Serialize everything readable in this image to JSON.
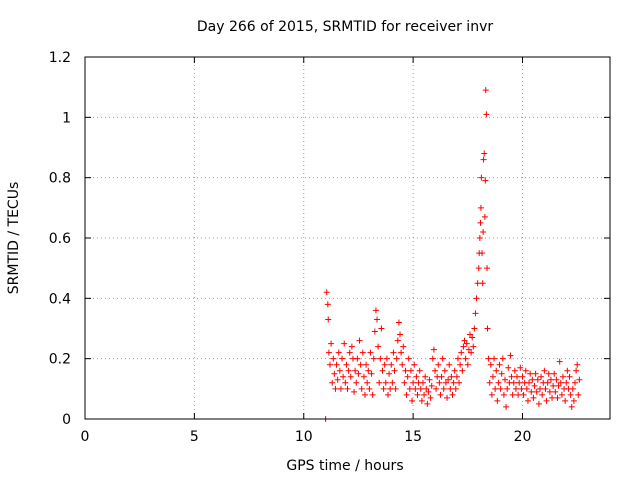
{
  "chart_data": {
    "type": "scatter",
    "title": "Day 266 of 2015, SRMTID for receiver invr",
    "xlabel": "GPS time / hours",
    "ylabel": "SRMTID / TECUs",
    "xlim": [
      0,
      24
    ],
    "ylim": [
      0,
      1.2
    ],
    "xticks": [
      0,
      5,
      10,
      15,
      20
    ],
    "xtick_labels": [
      "0",
      "5",
      "10",
      "15",
      "20"
    ],
    "yticks": [
      0,
      0.2,
      0.4,
      0.6,
      0.8,
      1.0,
      1.2
    ],
    "ytick_labels": [
      "0",
      "0.2",
      "0.4",
      "0.6",
      "0.8",
      "1",
      "1.2"
    ],
    "grid": true,
    "marker": "+",
    "color": "#ff0000",
    "series": [
      {
        "name": "SRMTID",
        "points": [
          [
            11.0,
            0.0
          ],
          [
            11.05,
            0.42
          ],
          [
            11.1,
            0.38
          ],
          [
            11.12,
            0.33
          ],
          [
            11.15,
            0.22
          ],
          [
            11.2,
            0.18
          ],
          [
            11.25,
            0.25
          ],
          [
            11.3,
            0.12
          ],
          [
            11.35,
            0.2
          ],
          [
            11.4,
            0.15
          ],
          [
            11.45,
            0.1
          ],
          [
            11.5,
            0.18
          ],
          [
            11.55,
            0.13
          ],
          [
            11.6,
            0.22
          ],
          [
            11.65,
            0.16
          ],
          [
            11.7,
            0.1
          ],
          [
            11.75,
            0.2
          ],
          [
            11.8,
            0.14
          ],
          [
            11.85,
            0.25
          ],
          [
            11.9,
            0.12
          ],
          [
            11.95,
            0.18
          ],
          [
            12.0,
            0.1
          ],
          [
            12.05,
            0.16
          ],
          [
            12.1,
            0.22
          ],
          [
            12.15,
            0.14
          ],
          [
            12.2,
            0.24
          ],
          [
            12.25,
            0.2
          ],
          [
            12.3,
            0.09
          ],
          [
            12.35,
            0.16
          ],
          [
            12.4,
            0.12
          ],
          [
            12.45,
            0.2
          ],
          [
            12.5,
            0.15
          ],
          [
            12.55,
            0.26
          ],
          [
            12.6,
            0.18
          ],
          [
            12.65,
            0.1
          ],
          [
            12.7,
            0.22
          ],
          [
            12.75,
            0.14
          ],
          [
            12.8,
            0.08
          ],
          [
            12.85,
            0.18
          ],
          [
            12.9,
            0.12
          ],
          [
            12.95,
            0.16
          ],
          [
            13.0,
            0.1
          ],
          [
            13.05,
            0.22
          ],
          [
            13.1,
            0.15
          ],
          [
            13.15,
            0.08
          ],
          [
            13.2,
            0.2
          ],
          [
            13.25,
            0.29
          ],
          [
            13.3,
            0.36
          ],
          [
            13.35,
            0.33
          ],
          [
            13.4,
            0.24
          ],
          [
            13.45,
            0.12
          ],
          [
            13.5,
            0.2
          ],
          [
            13.55,
            0.3
          ],
          [
            13.6,
            0.16
          ],
          [
            13.65,
            0.1
          ],
          [
            13.7,
            0.18
          ],
          [
            13.75,
            0.12
          ],
          [
            13.8,
            0.2
          ],
          [
            13.85,
            0.08
          ],
          [
            13.9,
            0.15
          ],
          [
            13.95,
            0.1
          ],
          [
            14.0,
            0.18
          ],
          [
            14.05,
            0.12
          ],
          [
            14.1,
            0.22
          ],
          [
            14.15,
            0.16
          ],
          [
            14.2,
            0.1
          ],
          [
            14.25,
            0.2
          ],
          [
            14.3,
            0.26
          ],
          [
            14.35,
            0.32
          ],
          [
            14.4,
            0.28
          ],
          [
            14.45,
            0.22
          ],
          [
            14.5,
            0.18
          ],
          [
            14.55,
            0.24
          ],
          [
            14.6,
            0.12
          ],
          [
            14.65,
            0.16
          ],
          [
            14.7,
            0.08
          ],
          [
            14.75,
            0.14
          ],
          [
            14.8,
            0.2
          ],
          [
            14.85,
            0.1
          ],
          [
            14.9,
            0.16
          ],
          [
            14.95,
            0.06
          ],
          [
            15.0,
            0.12
          ],
          [
            15.05,
            0.18
          ],
          [
            15.1,
            0.1
          ],
          [
            15.15,
            0.14
          ],
          [
            15.2,
            0.08
          ],
          [
            15.25,
            0.12
          ],
          [
            15.3,
            0.16
          ],
          [
            15.35,
            0.1
          ],
          [
            15.4,
            0.06
          ],
          [
            15.45,
            0.12
          ],
          [
            15.5,
            0.08
          ],
          [
            15.55,
            0.14
          ],
          [
            15.6,
            0.1
          ],
          [
            15.65,
            0.05
          ],
          [
            15.7,
            0.09
          ],
          [
            15.75,
            0.13
          ],
          [
            15.8,
            0.07
          ],
          [
            15.85,
            0.11
          ],
          [
            15.9,
            0.2
          ],
          [
            15.95,
            0.23
          ],
          [
            16.0,
            0.16
          ],
          [
            16.05,
            0.1
          ],
          [
            16.1,
            0.14
          ],
          [
            16.15,
            0.18
          ],
          [
            16.2,
            0.12
          ],
          [
            16.25,
            0.08
          ],
          [
            16.3,
            0.14
          ],
          [
            16.35,
            0.2
          ],
          [
            16.4,
            0.1
          ],
          [
            16.45,
            0.16
          ],
          [
            16.5,
            0.12
          ],
          [
            16.55,
            0.07
          ],
          [
            16.6,
            0.13
          ],
          [
            16.65,
            0.18
          ],
          [
            16.7,
            0.1
          ],
          [
            16.75,
            0.14
          ],
          [
            16.8,
            0.08
          ],
          [
            16.85,
            0.12
          ],
          [
            16.9,
            0.16
          ],
          [
            16.95,
            0.1
          ],
          [
            17.0,
            0.14
          ],
          [
            17.05,
            0.2
          ],
          [
            17.1,
            0.12
          ],
          [
            17.15,
            0.18
          ],
          [
            17.2,
            0.22
          ],
          [
            17.25,
            0.16
          ],
          [
            17.3,
            0.24
          ],
          [
            17.35,
            0.26
          ],
          [
            17.4,
            0.2
          ],
          [
            17.45,
            0.25
          ],
          [
            17.5,
            0.18
          ],
          [
            17.55,
            0.23
          ],
          [
            17.6,
            0.28
          ],
          [
            17.65,
            0.22
          ],
          [
            17.7,
            0.27
          ],
          [
            17.75,
            0.24
          ],
          [
            17.8,
            0.3
          ],
          [
            17.85,
            0.35
          ],
          [
            17.9,
            0.4
          ],
          [
            17.95,
            0.45
          ],
          [
            18.0,
            0.5
          ],
          [
            18.02,
            0.55
          ],
          [
            18.05,
            0.6
          ],
          [
            18.08,
            0.65
          ],
          [
            18.1,
            0.7
          ],
          [
            18.12,
            0.8
          ],
          [
            18.15,
            0.55
          ],
          [
            18.18,
            0.45
          ],
          [
            18.2,
            0.62
          ],
          [
            18.22,
            0.86
          ],
          [
            18.25,
            0.88
          ],
          [
            18.28,
            0.67
          ],
          [
            18.3,
            0.79
          ],
          [
            18.32,
            1.09
          ],
          [
            18.35,
            1.01
          ],
          [
            18.38,
            0.5
          ],
          [
            18.4,
            0.3
          ],
          [
            18.45,
            0.2
          ],
          [
            18.5,
            0.12
          ],
          [
            18.55,
            0.18
          ],
          [
            18.6,
            0.08
          ],
          [
            18.65,
            0.14
          ],
          [
            18.7,
            0.2
          ],
          [
            18.75,
            0.1
          ],
          [
            18.8,
            0.16
          ],
          [
            18.85,
            0.06
          ],
          [
            18.9,
            0.12
          ],
          [
            18.95,
            0.18
          ],
          [
            19.0,
            0.1
          ],
          [
            19.05,
            0.15
          ],
          [
            19.1,
            0.2
          ],
          [
            19.15,
            0.08
          ],
          [
            19.2,
            0.13
          ],
          [
            19.25,
            0.04
          ],
          [
            19.3,
            0.1
          ],
          [
            19.35,
            0.17
          ],
          [
            19.4,
            0.12
          ],
          [
            19.45,
            0.21
          ],
          [
            19.5,
            0.14
          ],
          [
            19.55,
            0.08
          ],
          [
            19.6,
            0.12
          ],
          [
            19.65,
            0.16
          ],
          [
            19.7,
            0.1
          ],
          [
            19.75,
            0.14
          ],
          [
            19.8,
            0.08
          ],
          [
            19.85,
            0.12
          ],
          [
            19.9,
            0.17
          ],
          [
            19.95,
            0.1
          ],
          [
            20.0,
            0.14
          ],
          [
            20.05,
            0.08
          ],
          [
            20.1,
            0.12
          ],
          [
            20.15,
            0.16
          ],
          [
            20.2,
            0.1
          ],
          [
            20.25,
            0.06
          ],
          [
            20.3,
            0.12
          ],
          [
            20.35,
            0.15
          ],
          [
            20.4,
            0.09
          ],
          [
            20.45,
            0.13
          ],
          [
            20.5,
            0.07
          ],
          [
            20.55,
            0.11
          ],
          [
            20.6,
            0.15
          ],
          [
            20.65,
            0.09
          ],
          [
            20.7,
            0.13
          ],
          [
            20.75,
            0.05
          ],
          [
            20.8,
            0.1
          ],
          [
            20.85,
            0.14
          ],
          [
            20.9,
            0.08
          ],
          [
            20.95,
            0.12
          ],
          [
            21.0,
            0.16
          ],
          [
            21.05,
            0.1
          ],
          [
            21.1,
            0.06
          ],
          [
            21.15,
            0.12
          ],
          [
            21.2,
            0.15
          ],
          [
            21.25,
            0.09
          ],
          [
            21.3,
            0.13
          ],
          [
            21.35,
            0.07
          ],
          [
            21.4,
            0.11
          ],
          [
            21.45,
            0.15
          ],
          [
            21.5,
            0.09
          ],
          [
            21.55,
            0.13
          ],
          [
            21.6,
            0.07
          ],
          [
            21.65,
            0.11
          ],
          [
            21.7,
            0.19
          ],
          [
            21.75,
            0.12
          ],
          [
            21.8,
            0.08
          ],
          [
            21.85,
            0.14
          ],
          [
            21.9,
            0.1
          ],
          [
            21.95,
            0.06
          ],
          [
            22.0,
            0.12
          ],
          [
            22.05,
            0.16
          ],
          [
            22.1,
            0.1
          ],
          [
            22.15,
            0.14
          ],
          [
            22.2,
            0.08
          ],
          [
            22.25,
            0.04
          ],
          [
            22.3,
            0.1
          ],
          [
            22.35,
            0.06
          ],
          [
            22.4,
            0.12
          ],
          [
            22.45,
            0.16
          ],
          [
            22.5,
            0.18
          ],
          [
            22.55,
            0.08
          ],
          [
            22.6,
            0.13
          ]
        ]
      }
    ]
  }
}
